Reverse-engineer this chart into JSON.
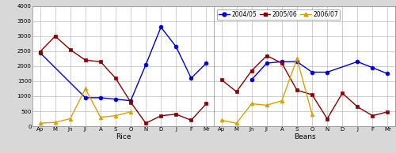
{
  "months": [
    "Ap",
    "M",
    "Jn",
    "Jl",
    "A",
    "S",
    "O",
    "N",
    "D",
    "J",
    "F",
    "Mr"
  ],
  "rice": {
    "2004_05": [
      2450,
      null,
      null,
      950,
      950,
      900,
      850,
      2050,
      3300,
      2650,
      1600,
      2100
    ],
    "2005_06": [
      2480,
      3000,
      2550,
      2200,
      2150,
      1600,
      800,
      100,
      350,
      400,
      200,
      750
    ],
    "2006_07": [
      100,
      130,
      250,
      1250,
      300,
      350,
      480,
      null,
      null,
      null,
      null,
      null
    ]
  },
  "beans": {
    "2004_05": [
      null,
      null,
      1550,
      2100,
      2150,
      2150,
      1800,
      1800,
      null,
      2150,
      1950,
      1750
    ],
    "2005_06": [
      1550,
      1150,
      1850,
      2350,
      2100,
      1200,
      1050,
      250,
      1100,
      650,
      350,
      480
    ],
    "2006_07": [
      200,
      100,
      750,
      700,
      850,
      2250,
      400,
      null,
      null,
      null,
      null,
      null
    ]
  },
  "color_2004_05": "#0000CC",
  "color_2005_06": "#8B0000",
  "color_2006_07": "#DAA000",
  "ylim": [
    0,
    4000
  ],
  "yticks": [
    0,
    500,
    1000,
    1500,
    2000,
    2500,
    3000,
    3500,
    4000
  ],
  "legend_labels": [
    "2004/05",
    "2005/06",
    "2006/07"
  ],
  "xlabel_rice": "Rice",
  "xlabel_beans": "Beans",
  "background_color": "#FFFFFF",
  "grid_color": "#BBBBBB",
  "fig_bg": "#D8D8D8"
}
